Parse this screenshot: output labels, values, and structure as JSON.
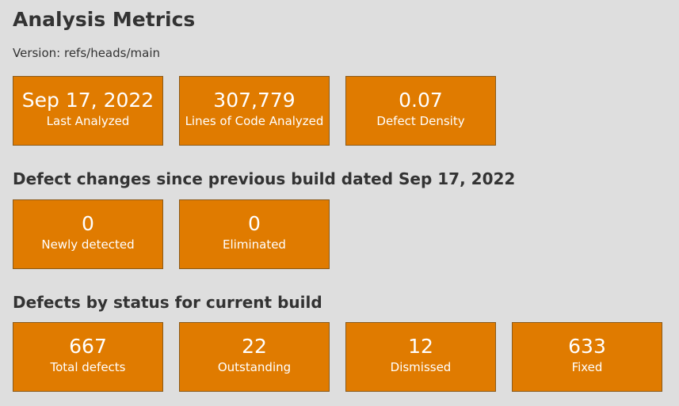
{
  "page": {
    "title": "Analysis Metrics",
    "version_label": "Version: refs/heads/main"
  },
  "summary": {
    "tiles": [
      {
        "value": "Sep 17, 2022",
        "label": "Last Analyzed"
      },
      {
        "value": "307,779",
        "label": "Lines of Code Analyzed"
      },
      {
        "value": "0.07",
        "label": "Defect Density"
      }
    ]
  },
  "changes": {
    "heading": "Defect changes since previous build dated Sep 17, 2022",
    "tiles": [
      {
        "value": "0",
        "label": "Newly detected"
      },
      {
        "value": "0",
        "label": "Eliminated"
      }
    ]
  },
  "status": {
    "heading": "Defects by status for current build",
    "tiles": [
      {
        "value": "667",
        "label": "Total defects"
      },
      {
        "value": "22",
        "label": "Outstanding"
      },
      {
        "value": "12",
        "label": "Dismissed"
      },
      {
        "value": "633",
        "label": "Fixed"
      }
    ]
  },
  "colors": {
    "background": "#dedede",
    "tile": "#e07b00",
    "tile_border": "#8a5a1a",
    "tile_text": "#ffffff",
    "heading_text": "#333333"
  }
}
